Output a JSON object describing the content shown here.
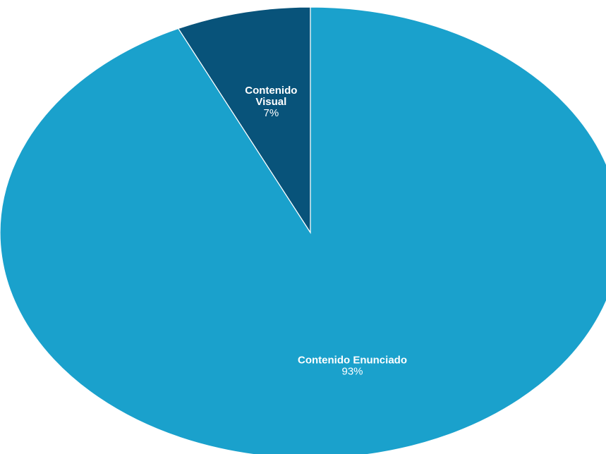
{
  "chart_data": {
    "type": "pie",
    "title": "",
    "slices": [
      {
        "name": "Contenido Visual",
        "label_lines": [
          "Contenido",
          "Visual"
        ],
        "value": 7,
        "value_label": "7%",
        "color": "#08537a"
      },
      {
        "name": "Contenido Enunciado",
        "label_lines": [
          "Contenido Enunciado"
        ],
        "value": 93,
        "value_label": "93%",
        "color": "#1aa1cc"
      }
    ],
    "start_angle_deg": 0,
    "direction": "counterclockwise",
    "border_color": "#ffffff",
    "legend": "none"
  }
}
